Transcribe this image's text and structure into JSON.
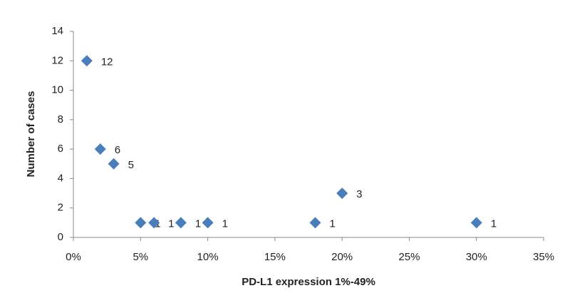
{
  "chart_data": {
    "type": "scatter",
    "x_label": "PD-L1 expression 1%-49%",
    "y_label": "Number of cases",
    "x": [
      1,
      2,
      3,
      5,
      6,
      8,
      10,
      18,
      20,
      30
    ],
    "values": [
      12,
      6,
      5,
      1,
      1,
      1,
      1,
      1,
      3,
      1
    ],
    "color": "#4a7ebb",
    "xlim": [
      0,
      35
    ],
    "xticks": [
      {
        "value": 0,
        "label": "0%"
      },
      {
        "value": 5,
        "label": "5%"
      },
      {
        "value": 10,
        "label": "10%"
      },
      {
        "value": 15,
        "label": "15%"
      },
      {
        "value": 20,
        "label": "20%"
      },
      {
        "value": 25,
        "label": "25%"
      },
      {
        "value": 30,
        "label": "30%"
      },
      {
        "value": 35,
        "label": "35%"
      }
    ],
    "ylim": [
      0,
      14
    ],
    "yticks": [
      0,
      2,
      4,
      6,
      8,
      10,
      12,
      14
    ],
    "grid": false
  }
}
